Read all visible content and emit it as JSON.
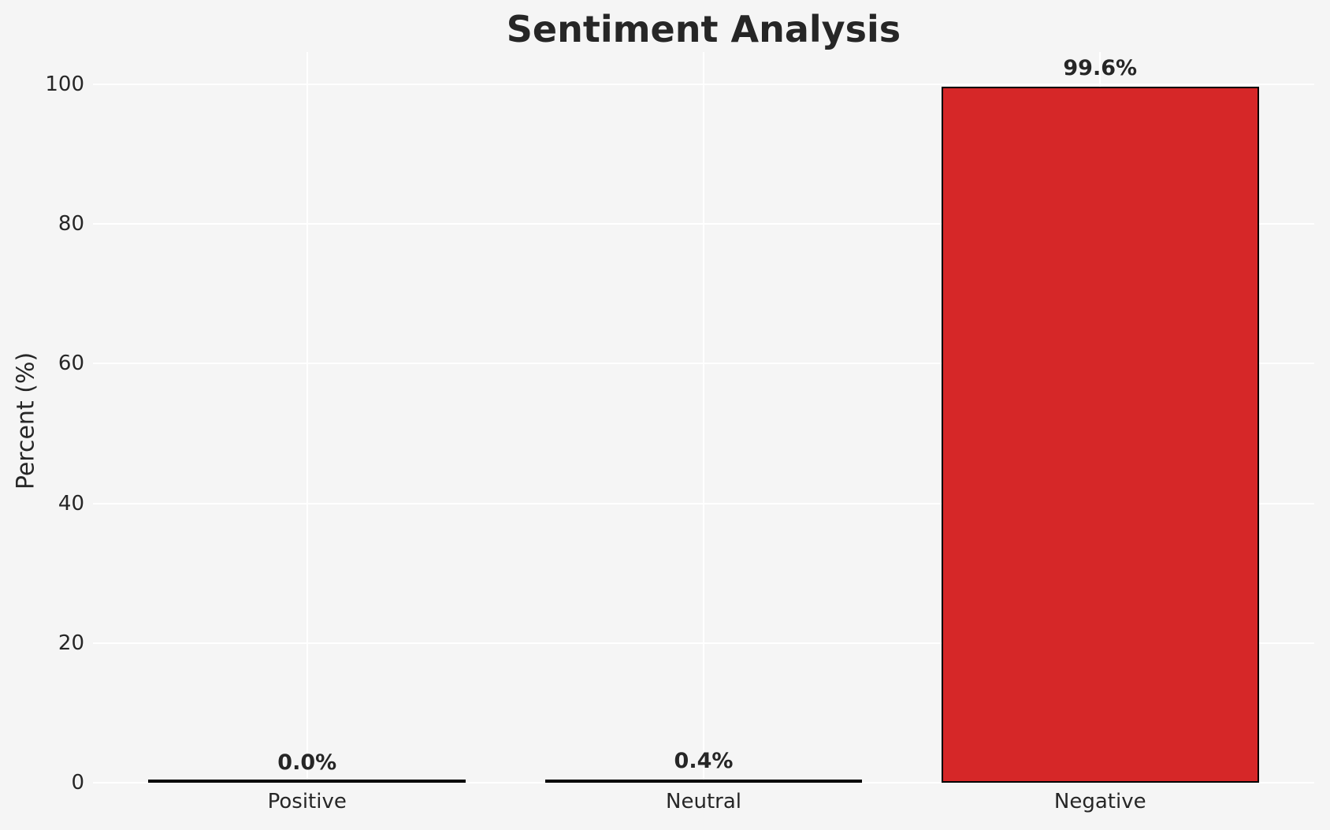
{
  "figure": {
    "background_color": "#f5f5f5"
  },
  "chart_data": {
    "type": "bar",
    "title": "Sentiment Analysis",
    "categories": [
      "Positive",
      "Neutral",
      "Negative"
    ],
    "values": [
      0.0,
      0.4,
      99.6
    ],
    "bar_labels": [
      "0.0%",
      "0.4%",
      "99.6%"
    ],
    "xlabel": "",
    "ylabel": "Percent (%)",
    "yticks": [
      0,
      20,
      40,
      60,
      80,
      100
    ],
    "ytick_labels": [
      "0",
      "20",
      "40",
      "60",
      "80",
      "100"
    ],
    "ylim": [
      0,
      104.6
    ],
    "xlim": [
      -0.54,
      2.54
    ],
    "bar_width": 0.8,
    "grid": "both",
    "grid_on": true,
    "legend": false,
    "colors": {
      "bar_fill": "#d62728",
      "bar_edge": "#000000",
      "background": "#f5f5f5",
      "grid": "#ffffff",
      "text": "#262626"
    }
  }
}
